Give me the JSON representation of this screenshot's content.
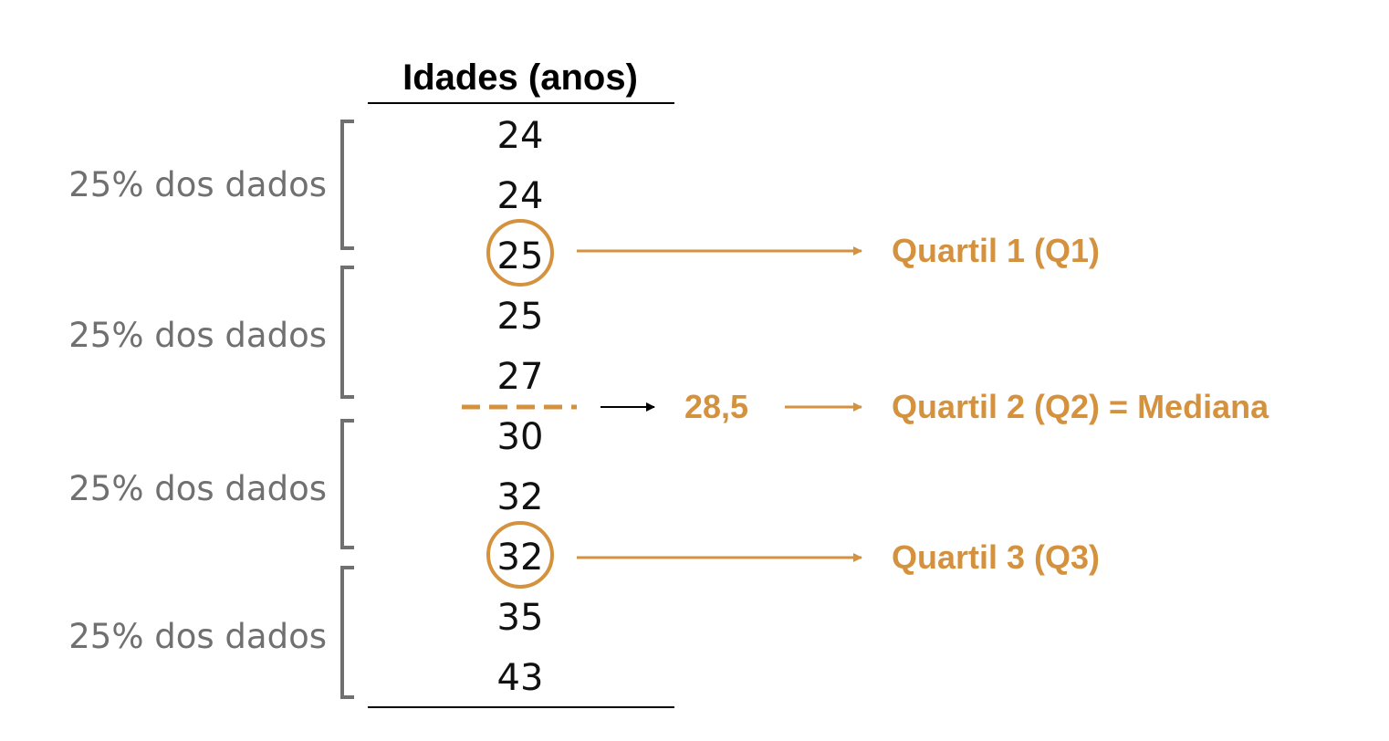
{
  "colors": {
    "accent": "#d4923f",
    "bracket": "#707070",
    "text": "#111111"
  },
  "table": {
    "header": "Idades (anos)",
    "values": [
      "24",
      "24",
      "25",
      "25",
      "27",
      "30",
      "32",
      "32",
      "35",
      "43"
    ]
  },
  "groups": [
    {
      "label": "25% dos dados"
    },
    {
      "label": "25% dos dados"
    },
    {
      "label": "25% dos dados"
    },
    {
      "label": "25% dos dados"
    }
  ],
  "quartiles": {
    "q1": {
      "label": "Quartil 1 (Q1)",
      "value": "25"
    },
    "q2": {
      "value_label": "28,5",
      "label": "Quartil 2 (Q2) = Mediana"
    },
    "q3": {
      "label": "Quartil 3 (Q3)",
      "value": "32"
    }
  },
  "icons": [
    "arrow-right-icon",
    "highlight-circle-icon",
    "bracket-icon"
  ]
}
